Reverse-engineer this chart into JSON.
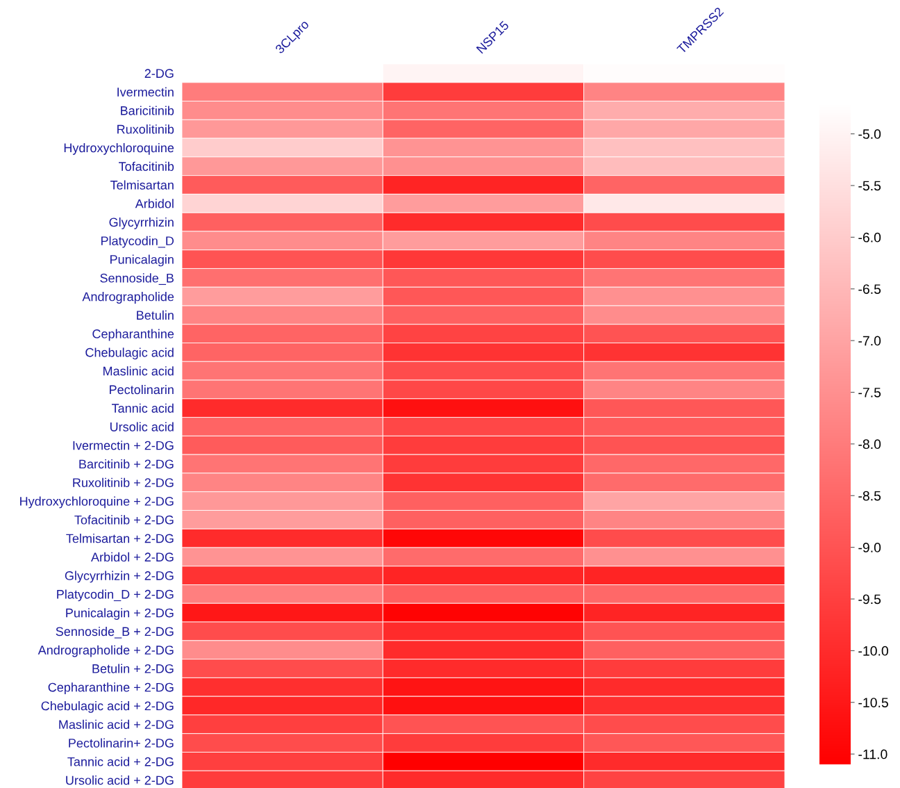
{
  "chart_data": {
    "type": "heatmap",
    "categories": [
      "3CLpro",
      "NSP15",
      "TMPRSS2"
    ],
    "y_categories": [
      "2-DG",
      "Ivermectin",
      "Baricitinib",
      "Ruxolitinib",
      "Hydroxychloroquine",
      "Tofacitinib",
      "Telmisartan",
      "Arbidol",
      "Glycyrrhizin",
      "Platycodin_D",
      "Punicalagin",
      "Sennoside_B",
      "Andrographolide",
      "Betulin",
      "Cepharanthine",
      "Chebulagic acid",
      "Maslinic acid",
      "Pectolinarin",
      "Tannic acid",
      "Ursolic acid",
      "Ivermectin + 2-DG",
      "Barcitinib + 2-DG",
      "Ruxolitinib + 2-DG",
      "Hydroxychloroquine + 2-DG",
      "Tofacitinib + 2-DG",
      "Telmisartan + 2-DG",
      "Arbidol + 2-DG",
      "Glycyrrhizin + 2-DG",
      "Platycodin_D + 2-DG",
      "Punicalagin + 2-DG",
      "Sennoside_B + 2-DG",
      "Andrographolide + 2-DG",
      "Betulin + 2-DG",
      "Cepharanthine + 2-DG",
      "Chebulagic acid + 2-DG",
      "Maslinic acid + 2-DG",
      "Pectolinarin+ 2-DG",
      "Tannic acid + 2-DG",
      "Ursolic acid + 2-DG"
    ],
    "cells": [
      [
        -4.7,
        -5.0,
        -4.8
      ],
      [
        -8.0,
        -9.6,
        -7.8
      ],
      [
        -7.6,
        -8.2,
        -6.8
      ],
      [
        -7.3,
        -8.6,
        -6.9
      ],
      [
        -6.0,
        -7.4,
        -6.3
      ],
      [
        -7.3,
        -7.5,
        -6.4
      ],
      [
        -8.8,
        -10.2,
        -8.6
      ],
      [
        -5.8,
        -7.2,
        -5.3
      ],
      [
        -8.7,
        -10.0,
        -9.2
      ],
      [
        -7.6,
        -7.2,
        -7.8
      ],
      [
        -9.0,
        -9.7,
        -9.2
      ],
      [
        -8.3,
        -8.9,
        -8.2
      ],
      [
        -7.2,
        -8.9,
        -7.5
      ],
      [
        -7.8,
        -8.7,
        -7.6
      ],
      [
        -8.6,
        -9.4,
        -9.0
      ],
      [
        -8.6,
        -9.8,
        -9.8
      ],
      [
        -8.2,
        -9.2,
        -8.2
      ],
      [
        -8.2,
        -9.3,
        -7.8
      ],
      [
        -10.0,
        -10.7,
        -8.9
      ],
      [
        -8.6,
        -9.3,
        -8.8
      ],
      [
        -8.8,
        -9.6,
        -9.0
      ],
      [
        -8.2,
        -9.6,
        -8.5
      ],
      [
        -7.8,
        -9.8,
        -8.4
      ],
      [
        -7.3,
        -8.7,
        -7.0
      ],
      [
        -7.2,
        -8.7,
        -7.8
      ],
      [
        -10.0,
        -10.9,
        -9.2
      ],
      [
        -7.4,
        -8.4,
        -7.5
      ],
      [
        -9.8,
        -10.2,
        -10.2
      ],
      [
        -7.9,
        -8.7,
        -8.5
      ],
      [
        -10.5,
        -11.0,
        -10.2
      ],
      [
        -9.2,
        -10.0,
        -9.0
      ],
      [
        -7.6,
        -10.0,
        -8.7
      ],
      [
        -9.2,
        -10.0,
        -9.6
      ],
      [
        -9.9,
        -10.6,
        -10.0
      ],
      [
        -10.1,
        -10.7,
        -9.9
      ],
      [
        -9.5,
        -9.0,
        -9.2
      ],
      [
        -9.2,
        -9.6,
        -8.9
      ],
      [
        -9.5,
        -11.1,
        -10.0
      ],
      [
        -9.6,
        -10.0,
        -9.4
      ]
    ],
    "clim": [
      -11.1,
      -4.7
    ],
    "cticks": [
      {
        "value": -5.0,
        "label": "-5.0"
      },
      {
        "value": -5.5,
        "label": "-5.5"
      },
      {
        "value": -6.0,
        "label": "-6.0"
      },
      {
        "value": -6.5,
        "label": "-6.5"
      },
      {
        "value": -7.0,
        "label": "-7.0"
      },
      {
        "value": -7.5,
        "label": "-7.5"
      },
      {
        "value": -8.0,
        "label": "-8.0"
      },
      {
        "value": -8.5,
        "label": "-8.5"
      },
      {
        "value": -9.0,
        "label": "-9.0"
      },
      {
        "value": -9.5,
        "label": "-9.5"
      },
      {
        "value": -10.0,
        "label": "-10.0"
      },
      {
        "value": -10.5,
        "label": "-10.5"
      },
      {
        "value": -11.0,
        "label": "-11.0"
      }
    ]
  }
}
